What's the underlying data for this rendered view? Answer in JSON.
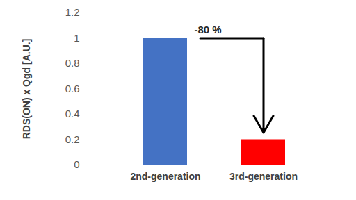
{
  "chart_data": {
    "type": "bar",
    "y_label": "RDS(ON) x Qgd [A.U.]",
    "categories": [
      "2nd-generation",
      "3rd-generation"
    ],
    "values": [
      1,
      0.2
    ],
    "colors": [
      "#4472c4",
      "#ff0000"
    ],
    "ylim": [
      0,
      1.2
    ],
    "yticks": [
      0,
      0.2,
      0.4,
      0.6,
      0.8,
      1,
      1.2
    ],
    "grid": false,
    "annotation": "-80 %"
  }
}
